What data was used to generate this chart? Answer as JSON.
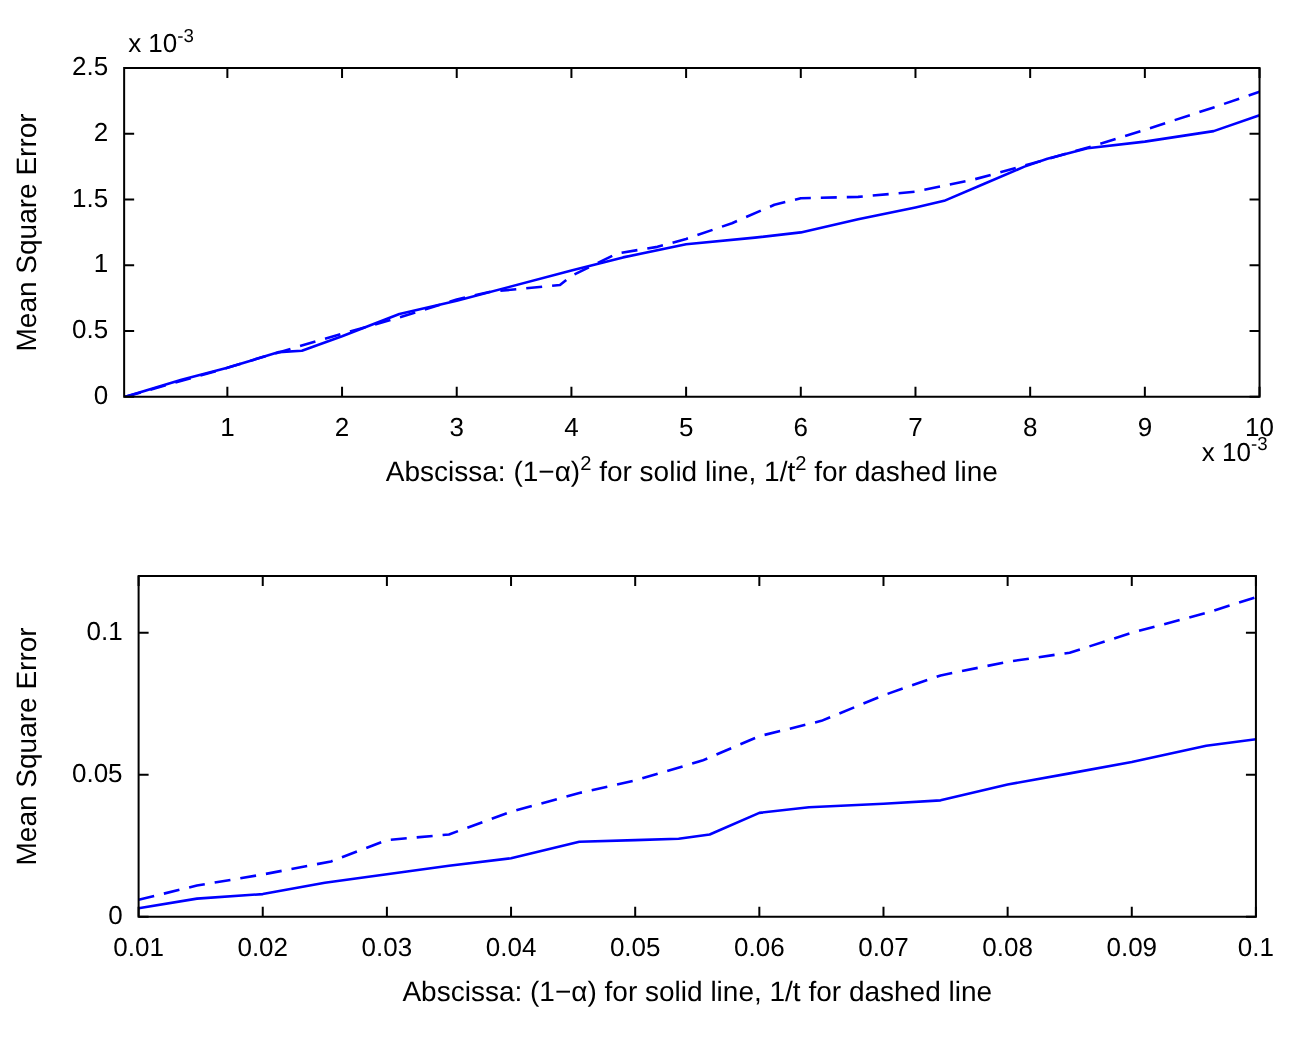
{
  "chart_data": [
    {
      "type": "line",
      "xlabel": "Abscissa: (1−α)$^{2}$ for solid line, 1/t$^{2}$ for dashed line",
      "ylabel": "Mean Square Error",
      "annotations": [
        "x 10$^{-3}$",
        "x 10$^{-3}$"
      ],
      "marker": "none",
      "grid": false,
      "legend": false,
      "xlim": [
        0.1,
        10
      ],
      "xticks": [
        1,
        2,
        3,
        4,
        5,
        6,
        7,
        8,
        9,
        10
      ],
      "ylim": [
        0,
        2.5
      ],
      "yticks": [
        0,
        0.5,
        1,
        1.5,
        2,
        2.5
      ],
      "series": [
        {
          "color": "#0000ff",
          "line_style": "solid",
          "x": [
            0.11,
            0.6,
            1,
            1.45,
            1.65,
            2,
            2.5,
            3,
            4,
            4.45,
            5,
            5.6,
            6,
            6.5,
            7,
            7.25,
            7.6,
            7.95,
            8.15,
            8.5,
            9,
            9.6,
            10
          ],
          "values": [
            0.0,
            0.13,
            0.22,
            0.34,
            0.35,
            0.46,
            0.63,
            0.73,
            0.96,
            1.06,
            1.16,
            1.21,
            1.25,
            1.35,
            1.44,
            1.49,
            1.62,
            1.75,
            1.81,
            1.89,
            1.94,
            2.02,
            2.14
          ]
        },
        {
          "color": "#0000ff",
          "line_style": "dashed",
          "x": [
            0.11,
            1,
            1.3,
            2,
            2.45,
            3,
            3.3,
            3.55,
            3.9,
            4,
            4.4,
            4.75,
            5,
            5.4,
            5.77,
            6,
            6.5,
            7,
            7.5,
            8,
            8.56,
            9,
            9.6,
            10
          ],
          "values": [
            0.0,
            0.22,
            0.3,
            0.48,
            0.59,
            0.74,
            0.8,
            0.82,
            0.85,
            0.92,
            1.09,
            1.14,
            1.2,
            1.32,
            1.46,
            1.51,
            1.52,
            1.56,
            1.65,
            1.77,
            1.91,
            2.03,
            2.2,
            2.32
          ]
        }
      ]
    },
    {
      "type": "line",
      "xlabel": "Abscissa: (1−α) for solid line, 1/t for dashed line",
      "ylabel": "Mean Square Error",
      "marker": "none",
      "grid": false,
      "legend": false,
      "xlim": [
        0.01,
        0.1
      ],
      "xticks": [
        0.01,
        0.02,
        0.03,
        0.04,
        0.05,
        0.06,
        0.07,
        0.08,
        0.09,
        0.1
      ],
      "ylim": [
        0,
        0.12
      ],
      "yticks": [
        0,
        0.05,
        0.1
      ],
      "series": [
        {
          "color": "#0000ff",
          "line_style": "solid",
          "x": [
            0.01,
            0.0147,
            0.02,
            0.025,
            0.03,
            0.035,
            0.04,
            0.0455,
            0.05,
            0.0535,
            0.056,
            0.06,
            0.064,
            0.07,
            0.0746,
            0.08,
            0.085,
            0.09,
            0.096,
            0.1
          ],
          "values": [
            0.003,
            0.0064,
            0.008,
            0.012,
            0.015,
            0.018,
            0.0206,
            0.0264,
            0.027,
            0.0275,
            0.029,
            0.0366,
            0.0386,
            0.0398,
            0.041,
            0.0466,
            0.0505,
            0.0545,
            0.0602,
            0.0625
          ]
        },
        {
          "color": "#0000ff",
          "line_style": "dashed",
          "x": [
            0.01,
            0.0147,
            0.02,
            0.0255,
            0.03,
            0.035,
            0.04,
            0.0455,
            0.05,
            0.0554,
            0.06,
            0.065,
            0.07,
            0.0746,
            0.08,
            0.085,
            0.09,
            0.096,
            0.1
          ],
          "values": [
            0.006,
            0.011,
            0.0149,
            0.0195,
            0.027,
            0.029,
            0.037,
            0.0436,
            0.048,
            0.055,
            0.0636,
            0.069,
            0.078,
            0.085,
            0.0898,
            0.093,
            0.1,
            0.107,
            0.1125
          ]
        }
      ]
    }
  ]
}
